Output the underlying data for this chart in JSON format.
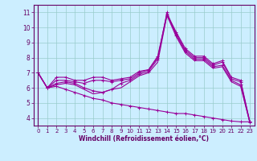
{
  "xlabel": "Windchill (Refroidissement éolien,°C)",
  "bg_color": "#cceeff",
  "line_color": "#990099",
  "grid_color": "#99cccc",
  "xlim": [
    -0.5,
    23.5
  ],
  "ylim": [
    3.5,
    11.5
  ],
  "yticks": [
    4,
    5,
    6,
    7,
    8,
    9,
    10,
    11
  ],
  "xticks": [
    0,
    1,
    2,
    3,
    4,
    5,
    6,
    7,
    8,
    9,
    10,
    11,
    12,
    13,
    14,
    15,
    16,
    17,
    18,
    19,
    20,
    21,
    22,
    23
  ],
  "line1_x": [
    0,
    1,
    2,
    3,
    4,
    5,
    6,
    7,
    8,
    9,
    10,
    11,
    12,
    13,
    14,
    15,
    16,
    17,
    18,
    19,
    20,
    21,
    22,
    23
  ],
  "line1_y": [
    7.0,
    6.0,
    6.7,
    6.7,
    6.5,
    6.5,
    6.7,
    6.7,
    6.5,
    6.6,
    6.7,
    7.1,
    7.2,
    8.1,
    10.9,
    9.7,
    8.6,
    8.1,
    8.1,
    7.6,
    7.8,
    6.7,
    6.5,
    3.75
  ],
  "line2_x": [
    0,
    1,
    2,
    3,
    4,
    5,
    6,
    7,
    8,
    9,
    10,
    11,
    12,
    13,
    14,
    15,
    16,
    17,
    18,
    19,
    20,
    21,
    22,
    23
  ],
  "line2_y": [
    7.0,
    6.0,
    6.5,
    6.5,
    6.4,
    6.3,
    6.5,
    6.5,
    6.4,
    6.5,
    6.6,
    7.0,
    7.2,
    8.0,
    10.8,
    9.6,
    8.5,
    8.0,
    8.0,
    7.5,
    7.7,
    6.6,
    6.4,
    3.75
  ],
  "line3_x": [
    0,
    1,
    2,
    3,
    4,
    5,
    6,
    7,
    8,
    9,
    10,
    11,
    12,
    13,
    14,
    15,
    16,
    17,
    18,
    19,
    20,
    21,
    22,
    23
  ],
  "line3_y": [
    7.0,
    6.0,
    6.3,
    6.4,
    6.3,
    6.0,
    5.8,
    5.7,
    5.9,
    6.3,
    6.5,
    6.9,
    7.1,
    7.9,
    11.0,
    9.5,
    8.4,
    7.9,
    7.9,
    7.4,
    7.5,
    6.5,
    6.2,
    3.7
  ],
  "line4_x": [
    0,
    1,
    2,
    3,
    4,
    5,
    6,
    7,
    8,
    9,
    10,
    11,
    12,
    13,
    14,
    15,
    16,
    17,
    18,
    19,
    20,
    21,
    22,
    23
  ],
  "line4_y": [
    7.0,
    6.0,
    6.2,
    6.3,
    6.2,
    5.9,
    5.6,
    5.7,
    5.9,
    6.0,
    6.4,
    6.8,
    7.0,
    7.7,
    10.8,
    9.4,
    8.3,
    7.8,
    7.8,
    7.3,
    7.4,
    6.4,
    6.1,
    3.7
  ],
  "line5_x": [
    0,
    1,
    2,
    3,
    4,
    5,
    6,
    7,
    8,
    9,
    10,
    11,
    12,
    13,
    14,
    15,
    16,
    17,
    18,
    19,
    20,
    21,
    22,
    23
  ],
  "line5_y": [
    7.0,
    6.0,
    6.1,
    5.9,
    5.7,
    5.5,
    5.3,
    5.2,
    5.0,
    4.9,
    4.8,
    4.7,
    4.6,
    4.5,
    4.4,
    4.3,
    4.3,
    4.2,
    4.1,
    4.0,
    3.9,
    3.8,
    3.75,
    3.75
  ]
}
